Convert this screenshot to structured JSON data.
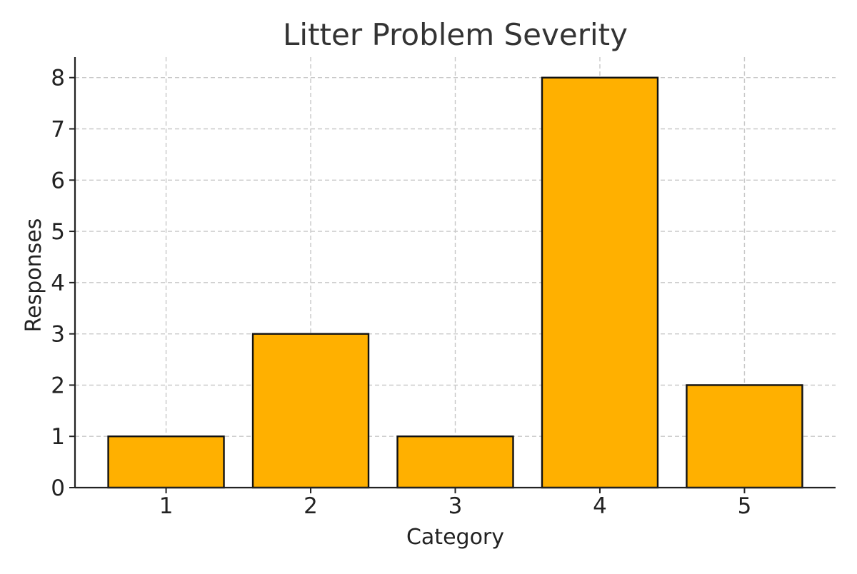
{
  "chart_data": {
    "type": "bar",
    "title": "Litter Problem Severity",
    "xlabel": "Category",
    "ylabel": "Responses",
    "categories": [
      "1",
      "2",
      "3",
      "4",
      "5"
    ],
    "values": [
      1,
      3,
      1,
      8,
      2
    ],
    "yticks": [
      0,
      1,
      2,
      3,
      4,
      5,
      6,
      7,
      8
    ],
    "ylim": [
      0,
      8.4
    ],
    "grid": true,
    "bar_color": "#FFB000",
    "edge_color": "#111111"
  }
}
